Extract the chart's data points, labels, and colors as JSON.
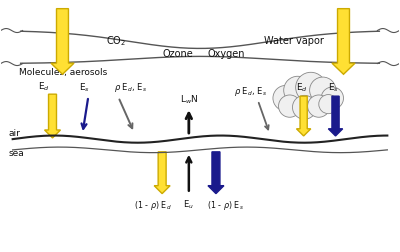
{
  "bg_color": "#ffffff",
  "arrow_yellow": "#FFE033",
  "arrow_blue": "#1a1a8c",
  "arrow_gray": "#888888",
  "arrow_darkgray": "#666666",
  "arrow_black": "#111111",
  "wave_color": "#444444",
  "text_color": "#111111",
  "labels": {
    "co2": "CO$_2$",
    "ozone": "Ozone",
    "oxygen": "Oxygen",
    "water_vapor": "Water vapor",
    "molecules": "Molecules, aerosols",
    "air": "air",
    "sea": "sea"
  }
}
